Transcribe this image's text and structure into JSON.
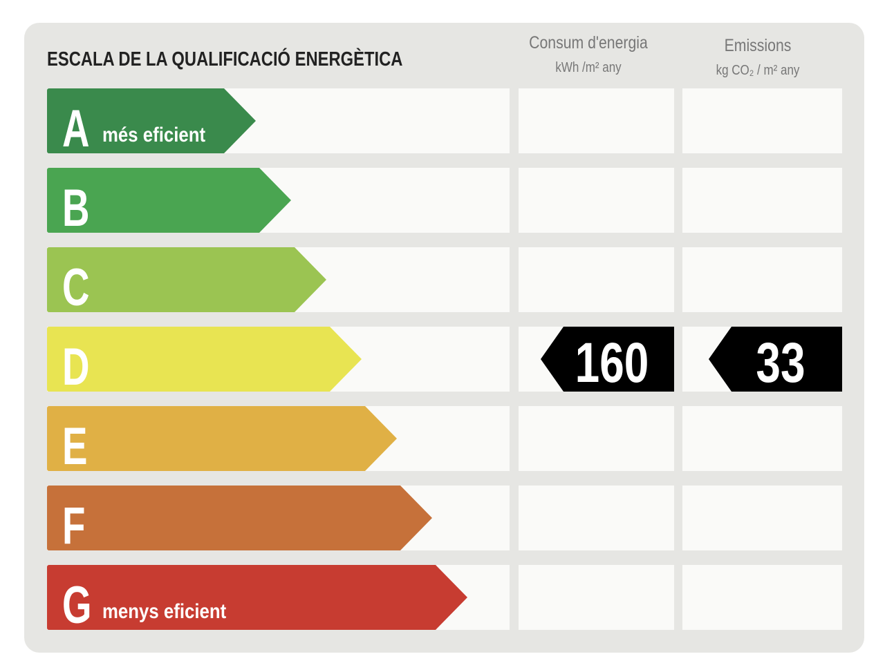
{
  "header": {
    "title": "ESCALA DE LA QUALIFICACIÓ ENERGÈTICA",
    "energy_column": {
      "title": "Consum d'energia",
      "unit": "kWh /m² any"
    },
    "emissions_column": {
      "title": "Emissions",
      "unit": "kg CO₂ / m² any"
    }
  },
  "rows": [
    {
      "letter": "A",
      "label": "més eficient",
      "color": "#3a8a4c"
    },
    {
      "letter": "B",
      "color": "#4aa551"
    },
    {
      "letter": "C",
      "color": "#9bc452"
    },
    {
      "letter": "D",
      "color": "#e8e452",
      "energy": 160,
      "emissions": 33
    },
    {
      "letter": "E",
      "color": "#e0b045"
    },
    {
      "letter": "F",
      "color": "#c6713a"
    },
    {
      "letter": "G",
      "label": "menys eficient",
      "color": "#c73c31"
    }
  ]
}
